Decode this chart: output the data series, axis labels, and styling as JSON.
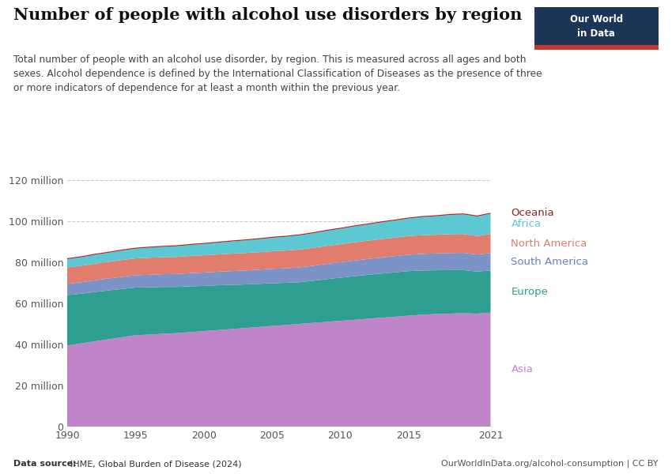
{
  "title": "Number of people with alcohol use disorders by region",
  "subtitle": "Total number of people with an alcohol use disorder, by region. This is measured across all ages and both\nsexes. Alcohol dependence is defined by the International Classification of Diseases as the presence of three\nor more indicators of dependence for at least a month within the previous year.",
  "source_left": "Data source: IHME, Global Burden of Disease (2024)",
  "source_right": "OurWorldInData.org/alcohol-consumption | CC BY",
  "years": [
    1990,
    1991,
    1992,
    1993,
    1994,
    1995,
    1996,
    1997,
    1998,
    1999,
    2000,
    2001,
    2002,
    2003,
    2004,
    2005,
    2006,
    2007,
    2008,
    2009,
    2010,
    2011,
    2012,
    2013,
    2014,
    2015,
    2016,
    2017,
    2018,
    2019,
    2020,
    2021
  ],
  "regions": [
    "Asia",
    "Europe",
    "South America",
    "North America",
    "Africa",
    "Oceania"
  ],
  "colors": [
    "#c084c8",
    "#2d9e8f",
    "#7b93c6",
    "#e07d6c",
    "#5bc8d4",
    "#a33030"
  ],
  "data": {
    "Asia": [
      39.5,
      40.5,
      41.5,
      42.5,
      43.5,
      44.5,
      44.8,
      45.2,
      45.5,
      46.0,
      46.5,
      47.0,
      47.5,
      48.0,
      48.5,
      49.0,
      49.5,
      50.0,
      50.5,
      51.0,
      51.5,
      52.0,
      52.5,
      53.0,
      53.5,
      54.0,
      54.5,
      54.8,
      55.0,
      55.2,
      55.0,
      55.5
    ],
    "Europe": [
      24.5,
      24.2,
      24.0,
      23.8,
      23.5,
      23.2,
      23.0,
      22.8,
      22.5,
      22.3,
      22.0,
      21.8,
      21.5,
      21.2,
      21.0,
      20.8,
      20.5,
      20.3,
      20.5,
      20.8,
      21.0,
      21.2,
      21.4,
      21.5,
      21.6,
      21.7,
      21.5,
      21.3,
      21.2,
      21.0,
      20.5,
      20.5
    ],
    "South America": [
      5.5,
      5.6,
      5.7,
      5.8,
      5.9,
      6.0,
      6.1,
      6.2,
      6.3,
      6.4,
      6.5,
      6.6,
      6.7,
      6.8,
      6.9,
      7.0,
      7.1,
      7.2,
      7.3,
      7.4,
      7.5,
      7.6,
      7.7,
      7.8,
      7.9,
      8.0,
      8.1,
      8.2,
      8.3,
      8.4,
      8.3,
      8.5
    ],
    "North America": [
      8.0,
      8.0,
      8.1,
      8.1,
      8.2,
      8.2,
      8.3,
      8.3,
      8.3,
      8.4,
      8.4,
      8.4,
      8.5,
      8.5,
      8.5,
      8.6,
      8.6,
      8.7,
      8.7,
      8.8,
      8.8,
      8.9,
      8.9,
      9.0,
      9.0,
      9.1,
      9.1,
      9.1,
      9.2,
      9.2,
      9.0,
      9.3
    ],
    "Africa": [
      4.0,
      4.1,
      4.3,
      4.4,
      4.6,
      4.7,
      4.9,
      5.0,
      5.2,
      5.3,
      5.5,
      5.7,
      5.9,
      6.1,
      6.3,
      6.5,
      6.7,
      6.9,
      7.1,
      7.3,
      7.5,
      7.7,
      7.9,
      8.1,
      8.3,
      8.5,
      8.8,
      9.0,
      9.3,
      9.5,
      9.5,
      9.8
    ],
    "Oceania": [
      0.5,
      0.5,
      0.5,
      0.5,
      0.5,
      0.5,
      0.5,
      0.5,
      0.5,
      0.5,
      0.5,
      0.5,
      0.5,
      0.5,
      0.5,
      0.5,
      0.5,
      0.5,
      0.5,
      0.5,
      0.5,
      0.5,
      0.5,
      0.5,
      0.5,
      0.5,
      0.5,
      0.5,
      0.5,
      0.5,
      0.5,
      0.5
    ]
  },
  "ylim": [
    0,
    120
  ],
  "yticks": [
    0,
    20,
    40,
    60,
    80,
    100,
    120
  ],
  "ytick_labels": [
    "0",
    "20 million",
    "40 million",
    "60 million",
    "80 million",
    "100 million",
    "120 million"
  ],
  "xticks": [
    1990,
    1995,
    2000,
    2005,
    2010,
    2015,
    2021
  ],
  "background_color": "#ffffff",
  "grid_color": "#cccccc",
  "label_colors": {
    "Asia": "#c084c8",
    "Europe": "#2d9e8f",
    "South America": "#6b7fc4",
    "North America": "#e07d6c",
    "Africa": "#5bc8d4",
    "Oceania": "#8b2020"
  },
  "logo_bg": "#1d3557",
  "logo_red": "#c0392b",
  "logo_line1": "Our World",
  "logo_line2": "in Data"
}
